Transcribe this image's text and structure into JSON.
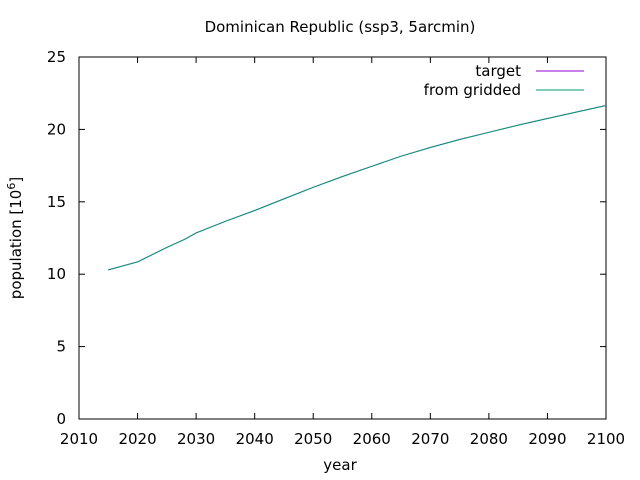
{
  "chart_data": {
    "type": "line",
    "title": "Dominican Republic (ssp3, 5arcmin)",
    "xlabel": "year",
    "ylabel": "population [10",
    "ylabel_sup": "6",
    "ylabel_end": "]",
    "xlim": [
      2010,
      2100
    ],
    "ylim": [
      0,
      25
    ],
    "xticks": [
      "2010",
      "2020",
      "2030",
      "2040",
      "2050",
      "2060",
      "2070",
      "2080",
      "2090",
      "2100"
    ],
    "yticks": [
      "0",
      "5",
      "10",
      "15",
      "20",
      "25"
    ],
    "legend_position": "top-right",
    "grid": false,
    "series": [
      {
        "name": "target",
        "color": "#9400d3",
        "x": [
          2015,
          2020,
          2025,
          2028,
          2030,
          2035,
          2040,
          2045,
          2050,
          2055,
          2060,
          2065,
          2070,
          2075,
          2080,
          2085,
          2090,
          2095,
          2100
        ],
        "y": [
          10.3,
          10.85,
          11.85,
          12.4,
          12.85,
          13.65,
          14.4,
          15.2,
          16.0,
          16.75,
          17.45,
          18.15,
          18.75,
          19.3,
          19.8,
          20.3,
          20.75,
          21.2,
          21.65
        ]
      },
      {
        "name": "from gridded",
        "color": "#009e73",
        "x": [
          2015,
          2020,
          2025,
          2028,
          2030,
          2035,
          2040,
          2045,
          2050,
          2055,
          2060,
          2065,
          2070,
          2075,
          2080,
          2085,
          2090,
          2095,
          2100
        ],
        "y": [
          10.3,
          10.85,
          11.85,
          12.4,
          12.85,
          13.65,
          14.4,
          15.2,
          16.0,
          16.75,
          17.45,
          18.15,
          18.75,
          19.3,
          19.8,
          20.3,
          20.75,
          21.2,
          21.65
        ]
      }
    ]
  }
}
